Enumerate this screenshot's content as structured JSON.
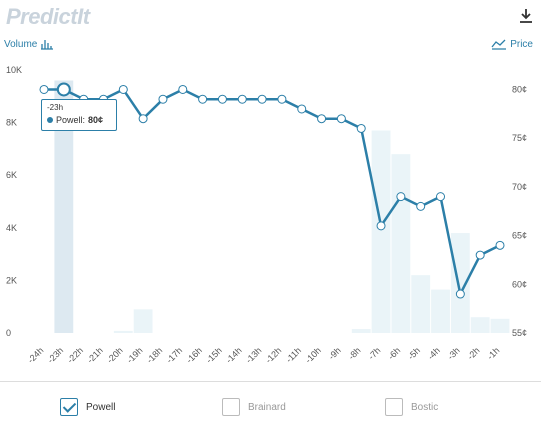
{
  "header": {
    "logo_text": "PredictIt",
    "volume_label": "Volume",
    "price_label": "Price"
  },
  "tooltip": {
    "time": "-23h",
    "series": "Powell:",
    "value": "80¢"
  },
  "legend": [
    {
      "label": "Powell",
      "checked": true
    },
    {
      "label": "Brainard",
      "checked": false
    },
    {
      "label": "Bostic",
      "checked": false
    }
  ],
  "colors": {
    "line": "#2c7fa8",
    "bar": "#eaf4f8",
    "bar_highlight": "#dde9f1",
    "tooltip_border": "#2c7fa8"
  },
  "chart_data": {
    "type": "line",
    "categories": [
      "-24h",
      "-23h",
      "-22h",
      "-21h",
      "-20h",
      "-19h",
      "-18h",
      "-17h",
      "-16h",
      "-15h",
      "-14h",
      "-13h",
      "-12h",
      "-11h",
      "-10h",
      "-9h",
      "-8h",
      "-7h",
      "-6h",
      "-5h",
      "-4h",
      "-3h",
      "-2h",
      "-1h"
    ],
    "series": [
      {
        "name": "Powell",
        "axis": "right",
        "values": [
          80,
          80,
          79,
          79,
          80,
          77,
          79,
          80,
          79,
          79,
          79,
          79,
          79,
          78,
          77,
          77,
          76,
          66,
          69,
          68,
          69,
          59,
          63,
          64
        ]
      },
      {
        "axis": "left",
        "kind": "volume",
        "values": [
          0,
          9600,
          0,
          0,
          80,
          900,
          0,
          0,
          0,
          0,
          0,
          0,
          0,
          0,
          0,
          0,
          150,
          7700,
          6800,
          2200,
          1650,
          3800,
          600,
          540
        ]
      }
    ],
    "left_axis": {
      "ylim": [
        0,
        10000
      ],
      "ticks": [
        "0",
        "2K",
        "4K",
        "6K",
        "8K",
        "10K"
      ],
      "values": [
        0,
        2000,
        4000,
        6000,
        8000,
        10000
      ]
    },
    "right_axis": {
      "ylim": [
        55,
        82
      ],
      "ticks": [
        "55¢",
        "60¢",
        "65¢",
        "70¢",
        "75¢",
        "80¢"
      ],
      "values": [
        55,
        60,
        65,
        70,
        75,
        80
      ]
    },
    "highlight_index": 1
  }
}
